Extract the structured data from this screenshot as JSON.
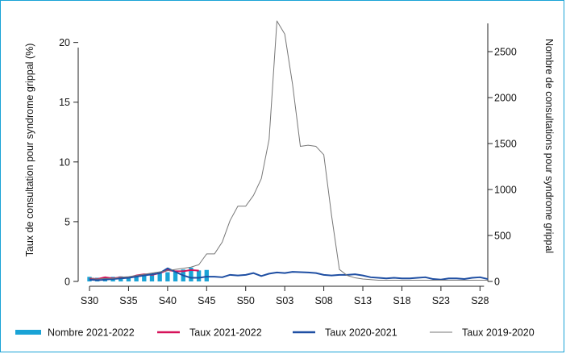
{
  "chart_data": {
    "type": "bar+line",
    "x_ticks": [
      "S30",
      "S35",
      "S40",
      "S45",
      "S50",
      "S03",
      "S08",
      "S13",
      "S18",
      "S23",
      "S28"
    ],
    "y_left": {
      "label": "Taux de consultation pour syndrome grippal (%)",
      "ticks": [
        0,
        5,
        10,
        15,
        20
      ],
      "lim": [
        0,
        22
      ]
    },
    "y_right": {
      "label": "Nombre de consultations pour syndrome grippal",
      "ticks": [
        0,
        500,
        1000,
        1500,
        2000,
        2500
      ],
      "lim": [
        0,
        2860
      ]
    },
    "legend_position": "bottom",
    "grid": false,
    "colors": {
      "nombre_2021_2022": "#1aa3d6",
      "taux_2021_2022": "#d6125a",
      "taux_2020_2021": "#1f4fa3",
      "taux_2019_2020": "#777777"
    },
    "legend": [
      {
        "key": "nombre_2021_2022",
        "label": "Nombre 2021-2022"
      },
      {
        "key": "taux_2021_2022",
        "label": "Taux 2021-2022"
      },
      {
        "key": "taux_2020_2021",
        "label": "Taux 2020-2021"
      },
      {
        "key": "taux_2019_2020",
        "label": "Taux 2019-2020"
      }
    ],
    "series": [
      {
        "key": "nombre_2021_2022",
        "label": "Nombre 2021-2022",
        "type": "bar",
        "axis": "right",
        "values": [
          50,
          40,
          45,
          50,
          55,
          45,
          60,
          80,
          85,
          90,
          100,
          105,
          130,
          150,
          120,
          125
        ]
      },
      {
        "key": "taux_2021_2022",
        "label": "Taux 2021-2022",
        "type": "line",
        "axis": "left",
        "values": [
          0.25,
          0.2,
          0.35,
          0.25,
          0.35,
          0.3,
          0.5,
          0.6,
          0.55,
          0.7,
          0.95,
          0.85,
          0.85,
          0.95,
          0.9
        ]
      },
      {
        "key": "taux_2020_2021",
        "label": "Taux 2020-2021",
        "type": "line",
        "axis": "left",
        "values": [
          0.15,
          0.1,
          0.15,
          0.2,
          0.25,
          0.3,
          0.4,
          0.5,
          0.6,
          0.7,
          1.1,
          0.8,
          0.5,
          0.3,
          0.3,
          0.4,
          0.4,
          0.35,
          0.55,
          0.5,
          0.55,
          0.7,
          0.45,
          0.65,
          0.75,
          0.7,
          0.8,
          0.78,
          0.75,
          0.7,
          0.55,
          0.5,
          0.55,
          0.55,
          0.6,
          0.5,
          0.35,
          0.3,
          0.25,
          0.3,
          0.25,
          0.25,
          0.3,
          0.35,
          0.2,
          0.15,
          0.25,
          0.25,
          0.2,
          0.3,
          0.35,
          0.2
        ]
      },
      {
        "key": "taux_2019_2020",
        "label": "Taux 2019-2020",
        "type": "line",
        "axis": "left",
        "values": [
          0.3,
          0.2,
          0.25,
          0.25,
          0.35,
          0.4,
          0.5,
          0.6,
          0.7,
          0.8,
          0.9,
          1.0,
          1.1,
          1.2,
          1.4,
          2.3,
          2.3,
          3.3,
          5.1,
          6.3,
          6.3,
          7.2,
          8.6,
          11.9,
          21.8,
          20.7,
          16.5,
          11.3,
          11.4,
          11.3,
          10.6,
          5.5,
          1.0,
          0.5,
          0.3,
          0.2,
          0.15,
          0.1,
          0.1,
          0.1,
          0.1,
          0.1,
          0.1,
          0.1,
          0.1,
          0.1,
          0.1,
          0.1,
          0.1,
          0.1,
          0.1,
          0.1
        ]
      }
    ]
  }
}
